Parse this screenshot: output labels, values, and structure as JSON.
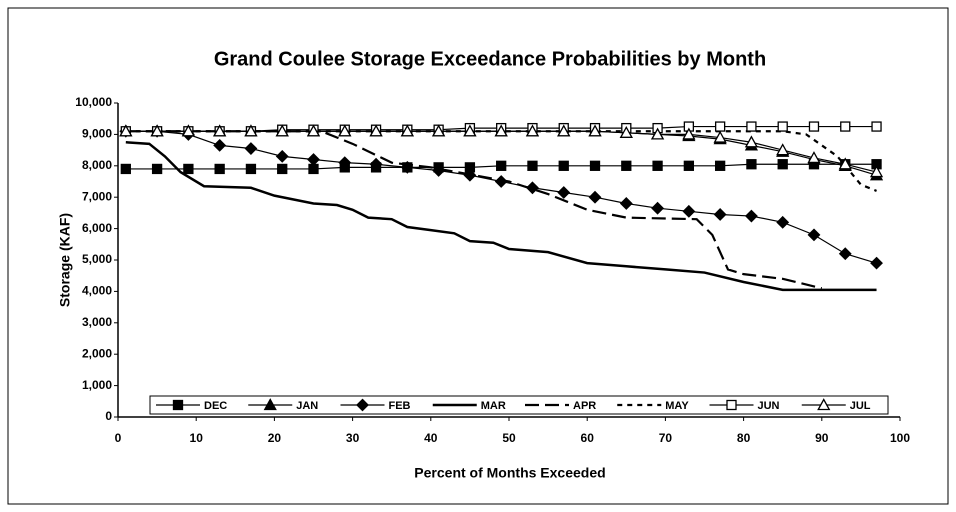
{
  "chart_data": {
    "type": "line",
    "title": "Grand Coulee Storage Exceedance Probabilities by Month",
    "xlabel": "Percent of Months Exceeded",
    "ylabel": "Storage (KAF)",
    "xlim": [
      0,
      100
    ],
    "xticks": [
      0,
      10,
      20,
      30,
      40,
      50,
      60,
      70,
      80,
      90,
      100
    ],
    "ylim": [
      0,
      10000
    ],
    "yticks": [
      0,
      {
        "value": 1000,
        "label": "1,000"
      },
      {
        "value": 2000,
        "label": "2,000"
      },
      {
        "value": 3000,
        "label": "3,000"
      },
      {
        "value": 4000,
        "label": "4,000"
      },
      {
        "value": 5000,
        "label": "5,000"
      },
      {
        "value": 6000,
        "label": "6,000"
      },
      {
        "value": 7000,
        "label": "7,000"
      },
      {
        "value": 8000,
        "label": "8,000"
      },
      {
        "value": 9000,
        "label": "9,000"
      },
      {
        "value": 10000,
        "label": "10,000"
      }
    ],
    "legend": "bottom",
    "series": [
      {
        "name": "DEC",
        "color": "#000000",
        "marker": "square",
        "dash": "solid",
        "x": [
          1,
          5,
          9,
          13,
          17,
          21,
          25,
          29,
          33,
          37,
          41,
          45,
          49,
          53,
          57,
          61,
          65,
          69,
          73,
          77,
          81,
          85,
          89,
          93,
          97
        ],
        "values": [
          7900,
          7900,
          7900,
          7900,
          7900,
          7900,
          7900,
          7950,
          7950,
          7950,
          7950,
          7950,
          8000,
          8000,
          8000,
          8000,
          8000,
          8000,
          8000,
          8000,
          8050,
          8050,
          8050,
          8050,
          8050
        ]
      },
      {
        "name": "JAN",
        "color": "#000000",
        "marker": "triangle",
        "dash": "solid",
        "x": [
          1,
          5,
          9,
          13,
          17,
          21,
          25,
          29,
          33,
          37,
          41,
          45,
          49,
          53,
          57,
          61,
          65,
          69,
          73,
          77,
          81,
          85,
          89,
          93,
          97
        ],
        "values": [
          9100,
          9100,
          9100,
          9100,
          9100,
          9100,
          9100,
          9100,
          9100,
          9100,
          9100,
          9100,
          9100,
          9100,
          9100,
          9100,
          9050,
          9000,
          8950,
          8850,
          8650,
          8450,
          8200,
          8000,
          7700
        ]
      },
      {
        "name": "FEB",
        "color": "#000000",
        "marker": "diamond",
        "dash": "solid",
        "x": [
          1,
          5,
          9,
          13,
          17,
          21,
          25,
          29,
          33,
          37,
          41,
          45,
          49,
          53,
          57,
          61,
          65,
          69,
          73,
          77,
          81,
          85,
          89,
          93,
          97
        ],
        "values": [
          9100,
          9100,
          9000,
          8650,
          8550,
          8300,
          8200,
          8100,
          8050,
          7950,
          7850,
          7700,
          7500,
          7300,
          7150,
          7000,
          6800,
          6650,
          6550,
          6450,
          6400,
          6200,
          5800,
          5200,
          4900
        ]
      },
      {
        "name": "MAR",
        "color": "#000000",
        "marker": "none",
        "dash": "thick",
        "x": [
          1,
          4,
          6,
          8,
          11,
          17,
          20,
          25,
          28,
          30,
          32,
          35,
          37,
          40,
          43,
          45,
          48,
          50,
          55,
          60,
          65,
          70,
          75,
          80,
          85,
          97
        ],
        "values": [
          8750,
          8700,
          8300,
          7800,
          7350,
          7300,
          7050,
          6800,
          6750,
          6600,
          6350,
          6300,
          6050,
          5950,
          5850,
          5600,
          5550,
          5350,
          5250,
          4900,
          4800,
          4700,
          4600,
          4300,
          4050,
          4050
        ]
      },
      {
        "name": "APR",
        "color": "#000000",
        "marker": "none",
        "dash": "long",
        "x": [
          1,
          26,
          30,
          35,
          40,
          50,
          55,
          60,
          65,
          74,
          76,
          78,
          80,
          85,
          90
        ],
        "values": [
          9100,
          9100,
          8700,
          8100,
          7950,
          7500,
          7100,
          6600,
          6350,
          6300,
          5800,
          4700,
          4550,
          4400,
          4100
        ]
      },
      {
        "name": "MAY",
        "color": "#000000",
        "marker": "none",
        "dash": "short",
        "x": [
          1,
          85,
          88,
          92,
          95,
          97
        ],
        "values": [
          9100,
          9100,
          9000,
          8300,
          7400,
          7200
        ]
      },
      {
        "name": "JUN",
        "color": "#000000",
        "marker": "square-open",
        "dash": "solid",
        "x": [
          1,
          5,
          9,
          13,
          17,
          21,
          25,
          29,
          33,
          37,
          41,
          45,
          49,
          53,
          57,
          61,
          65,
          69,
          73,
          77,
          81,
          85,
          89,
          93,
          97
        ],
        "values": [
          9100,
          9100,
          9100,
          9100,
          9100,
          9150,
          9150,
          9150,
          9150,
          9150,
          9150,
          9200,
          9200,
          9200,
          9200,
          9200,
          9200,
          9200,
          9250,
          9250,
          9250,
          9250,
          9250,
          9250,
          9250
        ]
      },
      {
        "name": "JUL",
        "color": "#000000",
        "marker": "triangle-open",
        "dash": "solid",
        "x": [
          1,
          5,
          9,
          13,
          17,
          21,
          25,
          29,
          33,
          37,
          41,
          45,
          49,
          53,
          57,
          61,
          65,
          69,
          73,
          77,
          81,
          85,
          89,
          93,
          97
        ],
        "values": [
          9100,
          9100,
          9100,
          9100,
          9100,
          9100,
          9100,
          9100,
          9100,
          9100,
          9100,
          9100,
          9100,
          9100,
          9100,
          9100,
          9050,
          9000,
          9000,
          8900,
          8750,
          8500,
          8250,
          8050,
          7800
        ]
      }
    ]
  }
}
